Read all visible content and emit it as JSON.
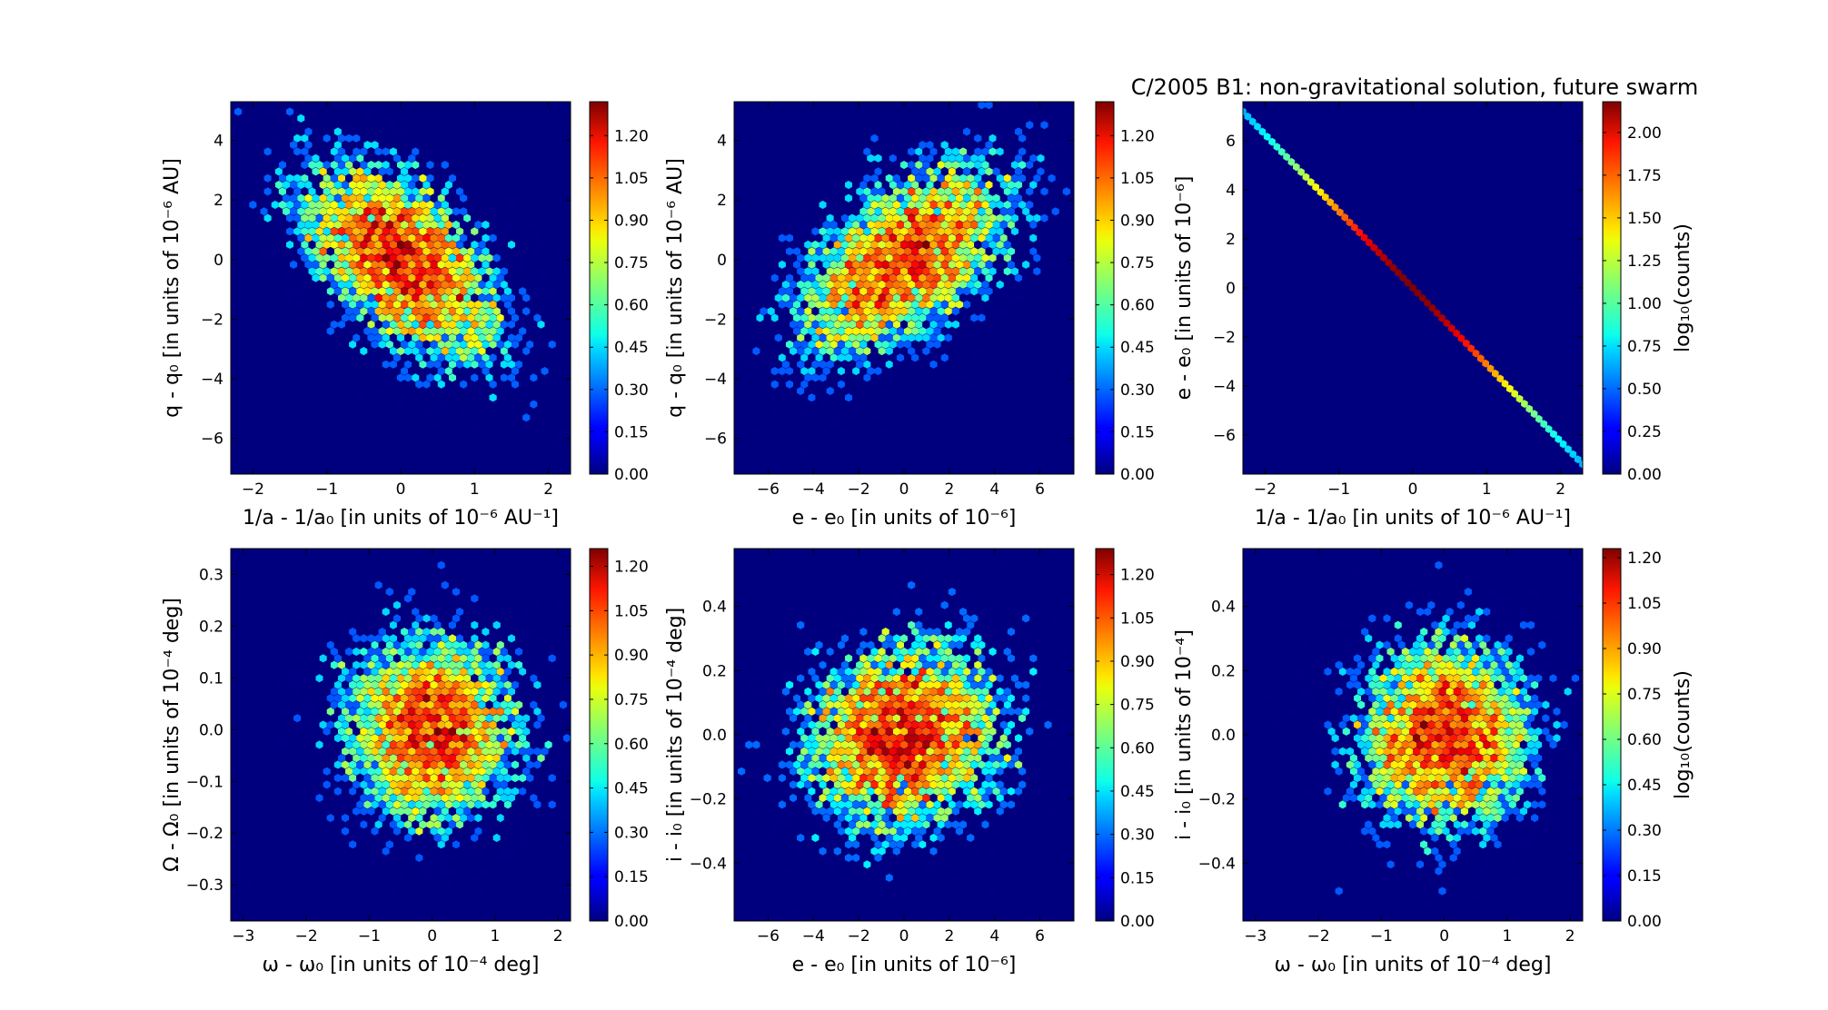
{
  "title": "C/2005 B1:  non-gravitational solution, future swarm",
  "chart_data": [
    {
      "type": "heatmap",
      "subtype": "hexbin-scatter",
      "xlabel": "1/a - 1/a₀ [in units of 10⁻⁶ AU⁻¹]",
      "ylabel": "q - q₀ [in units of 10⁻⁶ AU]",
      "xlim": [
        -2.3,
        2.3
      ],
      "ylim": [
        -7.2,
        5.3
      ],
      "xticks": [
        -2,
        -1,
        0,
        1,
        2
      ],
      "yticks": [
        -6,
        -4,
        -2,
        0,
        2,
        4
      ],
      "center": [
        0,
        0
      ],
      "spread": [
        0.75,
        1.8
      ],
      "correlation": -0.55,
      "colorbar": {
        "label": "",
        "max": 1.32,
        "ticks": [
          "0.00",
          "0.15",
          "0.30",
          "0.45",
          "0.60",
          "0.75",
          "0.90",
          "1.05",
          "1.20"
        ]
      }
    },
    {
      "type": "heatmap",
      "subtype": "hexbin-scatter",
      "xlabel": "e - e₀ [in units of 10⁻⁶]",
      "ylabel": "q - q₀ [in units of 10⁻⁶ AU]",
      "xlim": [
        -7.5,
        7.5
      ],
      "ylim": [
        -7.2,
        5.3
      ],
      "xticks": [
        -6,
        -4,
        -2,
        0,
        2,
        4,
        6
      ],
      "yticks": [
        -6,
        -4,
        -2,
        0,
        2,
        4
      ],
      "center": [
        0,
        0
      ],
      "spread": [
        2.6,
        1.8
      ],
      "correlation": 0.55,
      "colorbar": {
        "label": "",
        "max": 1.32,
        "ticks": [
          "0.00",
          "0.15",
          "0.30",
          "0.45",
          "0.60",
          "0.75",
          "0.90",
          "1.05",
          "1.20"
        ]
      }
    },
    {
      "type": "heatmap",
      "subtype": "hexbin-line",
      "xlabel": "1/a - 1/a₀ [in units of 10⁻⁶ AU⁻¹]",
      "ylabel": "e - e₀ [in units of 10⁻⁶]",
      "xlim": [
        -2.3,
        2.3
      ],
      "ylim": [
        -7.6,
        7.6
      ],
      "xticks": [
        -2,
        -1,
        0,
        1,
        2
      ],
      "yticks": [
        -6,
        -4,
        -2,
        0,
        2,
        4,
        6
      ],
      "line": {
        "x": [
          -2.3,
          2.3
        ],
        "y": [
          7.2,
          -7.2
        ]
      },
      "colorbar": {
        "label": "log₁₀(counts)",
        "max": 2.18,
        "ticks": [
          "0.00",
          "0.25",
          "0.50",
          "0.75",
          "1.00",
          "1.25",
          "1.50",
          "1.75",
          "2.00"
        ]
      }
    },
    {
      "type": "heatmap",
      "subtype": "hexbin-scatter",
      "xlabel": "ω - ω₀ [in units of 10⁻⁴ deg]",
      "ylabel": "Ω - Ω₀ [in units of 10⁻⁴ deg]",
      "xlim": [
        -3.2,
        2.2
      ],
      "ylim": [
        -0.37,
        0.35
      ],
      "xticks": [
        -3,
        -2,
        -1,
        0,
        1,
        2
      ],
      "yticks": [
        -0.3,
        -0.2,
        -0.1,
        0.0,
        0.1,
        0.2,
        0.3
      ],
      "center": [
        0,
        0
      ],
      "spread": [
        0.75,
        0.1
      ],
      "correlation": 0.0,
      "colorbar": {
        "label": "",
        "max": 1.26,
        "ticks": [
          "0.00",
          "0.15",
          "0.30",
          "0.45",
          "0.60",
          "0.75",
          "0.90",
          "1.05",
          "1.20"
        ]
      }
    },
    {
      "type": "heatmap",
      "subtype": "hexbin-scatter",
      "xlabel": "e - e₀ [in units of 10⁻⁶]",
      "ylabel": "i - i₀ [in units of 10⁻⁴ deg]",
      "xlim": [
        -7.5,
        7.5
      ],
      "ylim": [
        -0.58,
        0.58
      ],
      "xticks": [
        -6,
        -4,
        -2,
        0,
        2,
        4,
        6
      ],
      "yticks": [
        -0.4,
        -0.2,
        0.0,
        0.2,
        0.4
      ],
      "center": [
        0,
        0
      ],
      "spread": [
        2.4,
        0.16
      ],
      "correlation": 0.1,
      "colorbar": {
        "label": "",
        "max": 1.29,
        "ticks": [
          "0.00",
          "0.15",
          "0.30",
          "0.45",
          "0.60",
          "0.75",
          "0.90",
          "1.05",
          "1.20"
        ]
      }
    },
    {
      "type": "heatmap",
      "subtype": "hexbin-scatter",
      "xlabel": "ω - ω₀ [in units of 10⁻⁴ deg]",
      "ylabel": "i - i₀ [in units of 10⁻⁴]",
      "xlim": [
        -3.2,
        2.2
      ],
      "ylim": [
        -0.58,
        0.58
      ],
      "xticks": [
        -3,
        -2,
        -1,
        0,
        1,
        2
      ],
      "yticks": [
        -0.4,
        -0.2,
        0.0,
        0.2,
        0.4
      ],
      "center": [
        0,
        0
      ],
      "spread": [
        0.75,
        0.16
      ],
      "correlation": 0.0,
      "colorbar": {
        "label": "log₁₀(counts)",
        "max": 1.23,
        "ticks": [
          "0.00",
          "0.15",
          "0.30",
          "0.45",
          "0.60",
          "0.75",
          "0.90",
          "1.05",
          "1.20"
        ]
      }
    }
  ]
}
